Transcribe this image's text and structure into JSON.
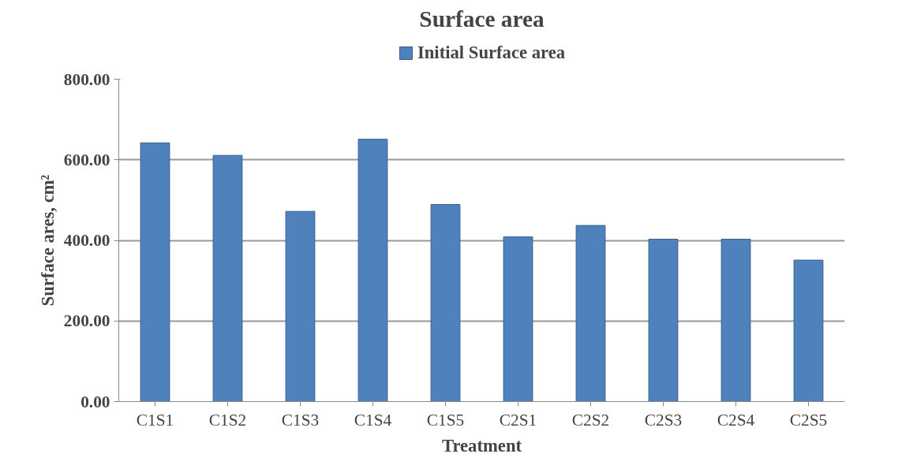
{
  "chart_data": {
    "type": "bar",
    "title": "Surface area",
    "xlabel": "Treatment",
    "ylabel": "Surface ares, cm²",
    "categories": [
      "C1S1",
      "C1S2",
      "C1S3",
      "C1S4",
      "C1S5",
      "C2S1",
      "C2S2",
      "C2S3",
      "C2S4",
      "C2S5"
    ],
    "series": [
      {
        "name": "Initial Surface area",
        "color": "#4f81bd",
        "values": [
          642,
          611,
          472,
          651,
          489,
          409,
          437,
          403,
          403,
          351
        ]
      }
    ],
    "ylim": [
      0,
      800
    ],
    "yticks": [
      {
        "value": 0,
        "label": "0.00"
      },
      {
        "value": 200,
        "label": "200.00"
      },
      {
        "value": 400,
        "label": "400.00"
      },
      {
        "value": 600,
        "label": "600.00"
      },
      {
        "value": 800,
        "label": "800.00"
      }
    ],
    "grid": "y",
    "legend": "top"
  }
}
